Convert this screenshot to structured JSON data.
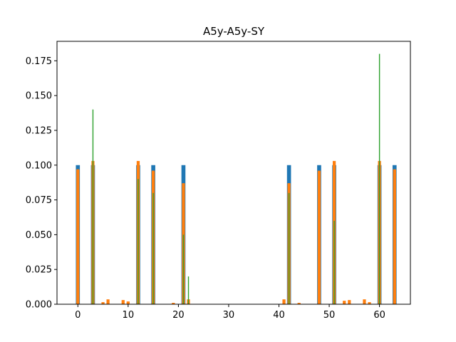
{
  "chart_data": {
    "type": "bar",
    "title": "A5y-A5y-SY",
    "xlabel": "",
    "ylabel": "",
    "xlim": [
      -4.15,
      66.15
    ],
    "ylim": [
      0,
      0.189
    ],
    "xticks": [
      0,
      10,
      20,
      30,
      40,
      50,
      60
    ],
    "yticks": [
      0.0,
      0.025,
      0.05,
      0.075,
      0.1,
      0.125,
      0.15,
      0.175
    ],
    "ytick_labels": [
      "0.000",
      "0.025",
      "0.050",
      "0.075",
      "0.100",
      "0.125",
      "0.150",
      "0.175"
    ],
    "series": [
      {
        "color": "#1f77b4",
        "bar_width": 0.8,
        "points": [
          [
            0,
            0.1
          ],
          [
            3,
            0.1
          ],
          [
            12,
            0.1
          ],
          [
            15,
            0.1
          ],
          [
            21,
            0.1
          ],
          [
            42,
            0.1
          ],
          [
            48,
            0.1
          ],
          [
            51,
            0.1
          ],
          [
            60,
            0.1
          ],
          [
            63,
            0.1
          ]
        ]
      },
      {
        "color": "#ff7f0e",
        "bar_width": 0.6,
        "points": [
          [
            0,
            0.097
          ],
          [
            3,
            0.103
          ],
          [
            5,
            0.0015
          ],
          [
            6,
            0.0035
          ],
          [
            9,
            0.003
          ],
          [
            10,
            0.002
          ],
          [
            12,
            0.103
          ],
          [
            15,
            0.096
          ],
          [
            19,
            0.001
          ],
          [
            21,
            0.087
          ],
          [
            22,
            0.0035
          ],
          [
            41,
            0.0035
          ],
          [
            42,
            0.087
          ],
          [
            44,
            0.001
          ],
          [
            48,
            0.096
          ],
          [
            51,
            0.103
          ],
          [
            53,
            0.0025
          ],
          [
            54,
            0.003
          ],
          [
            57,
            0.0035
          ],
          [
            58,
            0.0015
          ],
          [
            60,
            0.103
          ],
          [
            63,
            0.097
          ]
        ]
      },
      {
        "color": "#2ca02c",
        "bar_width": 0.2,
        "points": [
          [
            3,
            0.14
          ],
          [
            12,
            0.09
          ],
          [
            15,
            0.08
          ],
          [
            21,
            0.05
          ],
          [
            22,
            0.02
          ],
          [
            42,
            0.08
          ],
          [
            51,
            0.06
          ],
          [
            60,
            0.18
          ]
        ]
      }
    ]
  }
}
